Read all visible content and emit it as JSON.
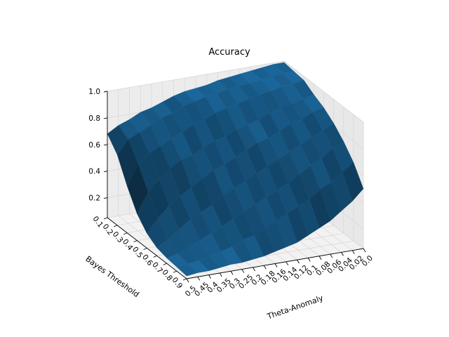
{
  "chart_data": {
    "type": "surface3d",
    "title": "Accuracy",
    "xlabel": "Theta-Anomaly",
    "ylabel": "Bayes Threshold",
    "zlabel": "",
    "color": "#1f77b4",
    "zlim": [
      0.05,
      1.0
    ],
    "z_ticks": [
      "0.2",
      "0.4",
      "0.6",
      "0.8",
      "1.0"
    ],
    "theta_anomaly_ticks": [
      "0.5",
      "0.45",
      "0.4",
      "0.35",
      "0.3",
      "0.25",
      "0.2",
      "0.18",
      "0.16",
      "0.14",
      "0.12",
      "0.1",
      "0.08",
      "0.06",
      "0.04",
      "0.02",
      "0.0"
    ],
    "bayes_threshold_ticks": [
      "0.1",
      "0.2",
      "0.3",
      "0.4",
      "0.5",
      "0.6",
      "0.7",
      "0.8",
      "0.9"
    ],
    "theta_anomaly": [
      0.5,
      0.45,
      0.4,
      0.35,
      0.3,
      0.25,
      0.2,
      0.18,
      0.16,
      0.14,
      0.12,
      0.1,
      0.08,
      0.06,
      0.04,
      0.02,
      0.0
    ],
    "bayes_threshold": [
      0.1,
      0.2,
      0.3,
      0.4,
      0.5,
      0.6,
      0.7,
      0.8,
      0.9
    ],
    "z_accuracy": [
      [
        0.68,
        0.73,
        0.76,
        0.8,
        0.82,
        0.85,
        0.88,
        0.9,
        0.91,
        0.92,
        0.94,
        0.95,
        0.96,
        0.97,
        0.98,
        0.99,
        0.99
      ],
      [
        0.58,
        0.68,
        0.72,
        0.76,
        0.8,
        0.82,
        0.86,
        0.88,
        0.9,
        0.91,
        0.93,
        0.94,
        0.95,
        0.96,
        0.97,
        0.98,
        0.98
      ],
      [
        0.4,
        0.55,
        0.62,
        0.66,
        0.7,
        0.74,
        0.78,
        0.8,
        0.84,
        0.86,
        0.88,
        0.9,
        0.92,
        0.93,
        0.95,
        0.96,
        0.97
      ],
      [
        0.25,
        0.4,
        0.48,
        0.55,
        0.6,
        0.62,
        0.66,
        0.7,
        0.72,
        0.76,
        0.78,
        0.8,
        0.84,
        0.86,
        0.88,
        0.9,
        0.92
      ],
      [
        0.16,
        0.26,
        0.34,
        0.4,
        0.45,
        0.5,
        0.55,
        0.58,
        0.62,
        0.66,
        0.7,
        0.72,
        0.76,
        0.8,
        0.82,
        0.86,
        0.88
      ],
      [
        0.11,
        0.16,
        0.22,
        0.28,
        0.32,
        0.36,
        0.42,
        0.46,
        0.5,
        0.54,
        0.58,
        0.62,
        0.66,
        0.7,
        0.74,
        0.78,
        0.82
      ],
      [
        0.09,
        0.11,
        0.14,
        0.18,
        0.22,
        0.26,
        0.3,
        0.34,
        0.38,
        0.42,
        0.46,
        0.5,
        0.55,
        0.6,
        0.64,
        0.7,
        0.74
      ],
      [
        0.08,
        0.09,
        0.1,
        0.12,
        0.14,
        0.16,
        0.2,
        0.22,
        0.26,
        0.3,
        0.34,
        0.38,
        0.42,
        0.48,
        0.52,
        0.58,
        0.64
      ],
      [
        0.07,
        0.08,
        0.08,
        0.09,
        0.1,
        0.1,
        0.11,
        0.12,
        0.14,
        0.16,
        0.18,
        0.22,
        0.26,
        0.3,
        0.36,
        0.42,
        0.5
      ]
    ]
  }
}
